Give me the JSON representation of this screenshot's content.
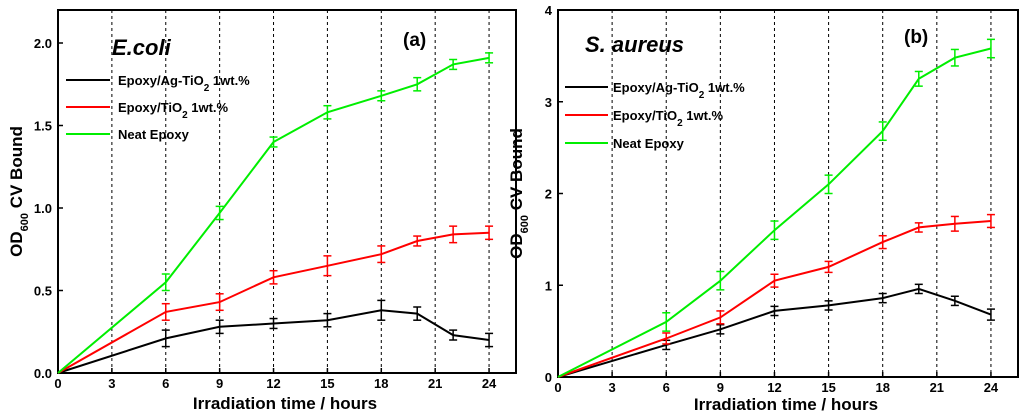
{
  "chart_data": [
    {
      "type": "line",
      "panel_label": "(a)",
      "organism": "E.coli",
      "xlabel": "Irradiation time / hours",
      "ylabel": "OD600 CV Bound",
      "xlim": [
        0,
        25.5
      ],
      "ylim": [
        0,
        2.2
      ],
      "xticks": [
        0,
        3,
        6,
        9,
        12,
        15,
        18,
        21,
        24
      ],
      "yticks": [
        0.0,
        0.5,
        1.0,
        1.5,
        2.0
      ],
      "ytick_labels": [
        "0.0",
        "0.5",
        "1.0",
        "1.5",
        "2.0"
      ],
      "vgrid": [
        3,
        6,
        9,
        12,
        15,
        18,
        21,
        24
      ],
      "series": [
        {
          "name": "Epoxy/Ag-TiO2 1wt.%",
          "color": "#000000",
          "x": [
            0,
            6,
            9,
            12,
            15,
            18,
            20,
            22,
            24
          ],
          "y": [
            0,
            0.21,
            0.28,
            0.3,
            0.32,
            0.38,
            0.36,
            0.23,
            0.2
          ],
          "err": [
            0,
            0.05,
            0.04,
            0.03,
            0.04,
            0.06,
            0.04,
            0.03,
            0.04
          ]
        },
        {
          "name": "Epoxy/TiO2 1wt.%",
          "color": "#ff0000",
          "x": [
            0,
            6,
            9,
            12,
            15,
            18,
            20,
            22,
            24
          ],
          "y": [
            0,
            0.37,
            0.43,
            0.58,
            0.65,
            0.72,
            0.8,
            0.84,
            0.85
          ],
          "err": [
            0,
            0.05,
            0.05,
            0.04,
            0.06,
            0.05,
            0.03,
            0.05,
            0.04
          ]
        },
        {
          "name": "Neat Epoxy",
          "color": "#00ee00",
          "x": [
            0,
            6,
            9,
            12,
            15,
            18,
            20,
            22,
            24
          ],
          "y": [
            0,
            0.55,
            0.97,
            1.4,
            1.58,
            1.68,
            1.75,
            1.87,
            1.91
          ],
          "err": [
            0,
            0.05,
            0.04,
            0.03,
            0.04,
            0.03,
            0.04,
            0.03,
            0.03
          ]
        }
      ]
    },
    {
      "type": "line",
      "panel_label": "(b)",
      "organism": "S. aureus",
      "xlabel": "Irradiation time / hours",
      "ylabel": "OD600 CV Bound",
      "xlim": [
        0,
        25.5
      ],
      "ylim": [
        0,
        4
      ],
      "xticks": [
        0,
        3,
        6,
        9,
        12,
        15,
        18,
        21,
        24
      ],
      "yticks": [
        0,
        1,
        2,
        3,
        4
      ],
      "ytick_labels": [
        "0",
        "1",
        "2",
        "3",
        "4"
      ],
      "vgrid": [
        3,
        6,
        9,
        12,
        15,
        18,
        21,
        24
      ],
      "series": [
        {
          "name": "Epoxy/Ag-TiO2 1wt.%",
          "color": "#000000",
          "x": [
            0,
            6,
            9,
            12,
            15,
            18,
            20,
            22,
            24
          ],
          "y": [
            0,
            0.35,
            0.52,
            0.72,
            0.78,
            0.86,
            0.96,
            0.83,
            0.68
          ],
          "err": [
            0,
            0.05,
            0.05,
            0.05,
            0.05,
            0.05,
            0.05,
            0.05,
            0.06
          ]
        },
        {
          "name": "Epoxy/TiO2 1wt.%",
          "color": "#ff0000",
          "x": [
            0,
            6,
            9,
            12,
            15,
            18,
            20,
            22,
            24
          ],
          "y": [
            0,
            0.42,
            0.65,
            1.05,
            1.2,
            1.47,
            1.63,
            1.67,
            1.7
          ],
          "err": [
            0,
            0.06,
            0.07,
            0.07,
            0.06,
            0.07,
            0.05,
            0.08,
            0.07
          ]
        },
        {
          "name": "Neat Epoxy",
          "color": "#00ee00",
          "x": [
            0,
            6,
            9,
            12,
            15,
            18,
            20,
            22,
            24
          ],
          "y": [
            0,
            0.6,
            1.05,
            1.6,
            2.1,
            2.68,
            3.25,
            3.48,
            3.58
          ],
          "err": [
            0,
            0.1,
            0.1,
            0.1,
            0.1,
            0.1,
            0.08,
            0.09,
            0.1
          ]
        }
      ]
    }
  ]
}
